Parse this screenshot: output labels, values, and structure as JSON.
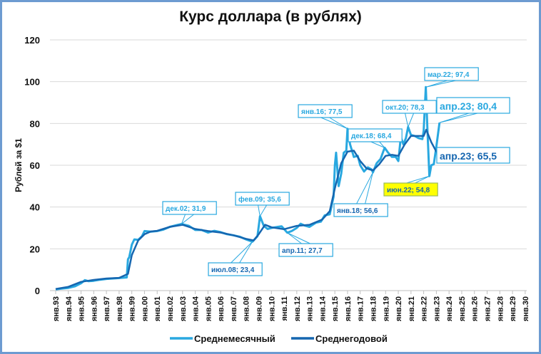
{
  "chart_data": {
    "type": "line",
    "title": "Курс доллара (в рублях)",
    "xlabel": "",
    "ylabel": "Рублей за $1",
    "ylim": [
      0,
      120
    ],
    "yticks": [
      0,
      20,
      40,
      60,
      80,
      100,
      120
    ],
    "grid": true,
    "legend_position": "bottom",
    "xtick_labels": [
      "янв.93",
      "янв.94",
      "янв.95",
      "янв.96",
      "янв.97",
      "янв.98",
      "янв.99",
      "янв.00",
      "янв.01",
      "янв.02",
      "янв.03",
      "янв.04",
      "янв.05",
      "янв.06",
      "янв.07",
      "янв.08",
      "янв.09",
      "янв.10",
      "янв.11",
      "янв.12",
      "янв.13",
      "янв.14",
      "янв.15",
      "янв.16",
      "янв.17",
      "янв.18",
      "янв.19",
      "янв.20",
      "янв.21",
      "янв.22",
      "янв.23",
      "янв.24",
      "янв.25",
      "янв.26",
      "янв.27",
      "янв.28",
      "янв.29",
      "янв.30"
    ],
    "series": [
      {
        "name": "Среднемесячный",
        "color": "#29a8e0",
        "points": [
          [
            1993.0,
            0.6
          ],
          [
            1993.5,
            1.0
          ],
          [
            1994.0,
            1.3
          ],
          [
            1994.5,
            2.0
          ],
          [
            1995.0,
            3.5
          ],
          [
            1995.3,
            5.0
          ],
          [
            1995.6,
            4.5
          ],
          [
            1996.0,
            4.7
          ],
          [
            1996.5,
            5.2
          ],
          [
            1997.0,
            5.6
          ],
          [
            1997.5,
            5.8
          ],
          [
            1998.0,
            6.0
          ],
          [
            1998.6,
            6.3
          ],
          [
            1998.7,
            15.0
          ],
          [
            1998.8,
            16.0
          ],
          [
            1999.0,
            22.0
          ],
          [
            1999.2,
            24.5
          ],
          [
            1999.5,
            24.3
          ],
          [
            1999.8,
            26.0
          ],
          [
            2000.0,
            28.5
          ],
          [
            2000.5,
            28.2
          ],
          [
            2001.0,
            28.5
          ],
          [
            2001.5,
            29.2
          ],
          [
            2002.0,
            30.5
          ],
          [
            2002.5,
            31.3
          ],
          [
            2002.92,
            31.9
          ],
          [
            2003.5,
            31.0
          ],
          [
            2004.0,
            29.0
          ],
          [
            2004.5,
            29.0
          ],
          [
            2005.0,
            27.8
          ],
          [
            2005.5,
            28.6
          ],
          [
            2006.0,
            28.0
          ],
          [
            2006.5,
            27.0
          ],
          [
            2007.0,
            26.5
          ],
          [
            2007.5,
            25.8
          ],
          [
            2008.0,
            24.5
          ],
          [
            2008.5,
            23.4
          ],
          [
            2008.9,
            26.0
          ],
          [
            2009.1,
            35.6
          ],
          [
            2009.4,
            31.0
          ],
          [
            2009.7,
            29.5
          ],
          [
            2010.0,
            30.0
          ],
          [
            2010.5,
            30.5
          ],
          [
            2010.8,
            30.8
          ],
          [
            2011.0,
            29.5
          ],
          [
            2011.25,
            27.7
          ],
          [
            2011.6,
            28.5
          ],
          [
            2012.0,
            30.0
          ],
          [
            2012.3,
            32.0
          ],
          [
            2012.6,
            31.2
          ],
          [
            2013.0,
            30.5
          ],
          [
            2013.5,
            32.5
          ],
          [
            2013.9,
            33.0
          ],
          [
            2014.2,
            36.0
          ],
          [
            2014.6,
            36.5
          ],
          [
            2014.9,
            45.0
          ],
          [
            2015.0,
            60.0
          ],
          [
            2015.1,
            66.0
          ],
          [
            2015.3,
            50.0
          ],
          [
            2015.5,
            56.0
          ],
          [
            2015.7,
            66.0
          ],
          [
            2015.9,
            67.0
          ],
          [
            2016.0,
            77.5
          ],
          [
            2016.2,
            70.0
          ],
          [
            2016.5,
            64.0
          ],
          [
            2016.8,
            64.5
          ],
          [
            2017.0,
            60.0
          ],
          [
            2017.3,
            57.0
          ],
          [
            2017.6,
            59.0
          ],
          [
            2017.9,
            58.0
          ],
          [
            2018.0,
            56.6
          ],
          [
            2018.3,
            61.0
          ],
          [
            2018.6,
            63.0
          ],
          [
            2018.92,
            68.4
          ],
          [
            2019.2,
            66.0
          ],
          [
            2019.5,
            64.0
          ],
          [
            2019.8,
            64.0
          ],
          [
            2020.0,
            62.0
          ],
          [
            2020.2,
            73.5
          ],
          [
            2020.4,
            70.0
          ],
          [
            2020.6,
            73.0
          ],
          [
            2020.77,
            78.3
          ],
          [
            2021.0,
            74.5
          ],
          [
            2021.3,
            74.0
          ],
          [
            2021.6,
            73.0
          ],
          [
            2021.9,
            72.5
          ],
          [
            2022.0,
            76.5
          ],
          [
            2022.17,
            97.4
          ],
          [
            2022.3,
            76.0
          ],
          [
            2022.45,
            54.8
          ],
          [
            2022.6,
            60.0
          ],
          [
            2022.8,
            60.5
          ],
          [
            2023.0,
            69.0
          ],
          [
            2023.25,
            80.4
          ]
        ]
      },
      {
        "name": "Среднегодовой",
        "color": "#1566b0",
        "points": [
          [
            1993.0,
            0.8
          ],
          [
            1994.0,
            1.8
          ],
          [
            1995.0,
            4.2
          ],
          [
            1996.0,
            5.1
          ],
          [
            1997.0,
            5.8
          ],
          [
            1998.0,
            6.1
          ],
          [
            1998.7,
            8.0
          ],
          [
            1999.0,
            17.0
          ],
          [
            1999.5,
            24.0
          ],
          [
            2000.0,
            27.0
          ],
          [
            2000.5,
            28.3
          ],
          [
            2001.0,
            28.6
          ],
          [
            2002.0,
            30.5
          ],
          [
            2003.0,
            31.5
          ],
          [
            2004.0,
            29.5
          ],
          [
            2005.0,
            28.5
          ],
          [
            2006.0,
            27.8
          ],
          [
            2007.0,
            26.5
          ],
          [
            2008.0,
            24.8
          ],
          [
            2008.6,
            24.0
          ],
          [
            2009.0,
            27.0
          ],
          [
            2009.5,
            31.5
          ],
          [
            2010.0,
            30.3
          ],
          [
            2011.0,
            29.4
          ],
          [
            2012.0,
            31.0
          ],
          [
            2013.0,
            31.5
          ],
          [
            2014.0,
            34.0
          ],
          [
            2014.6,
            38.0
          ],
          [
            2015.0,
            49.0
          ],
          [
            2015.5,
            61.0
          ],
          [
            2016.0,
            66.5
          ],
          [
            2016.5,
            67.0
          ],
          [
            2017.0,
            62.0
          ],
          [
            2017.5,
            58.5
          ],
          [
            2018.0,
            57.5
          ],
          [
            2018.5,
            60.5
          ],
          [
            2019.0,
            64.5
          ],
          [
            2019.5,
            65.0
          ],
          [
            2020.0,
            64.5
          ],
          [
            2020.5,
            70.0
          ],
          [
            2021.0,
            74.0
          ],
          [
            2021.5,
            74.0
          ],
          [
            2022.0,
            74.0
          ],
          [
            2022.2,
            77.0
          ],
          [
            2022.6,
            71.0
          ],
          [
            2023.0,
            66.5
          ],
          [
            2023.25,
            65.5
          ]
        ]
      }
    ],
    "annotations": [
      {
        "label": "дек.02; 31,9",
        "x": 2002.92,
        "y": 31.9,
        "series": "Среднемесячный"
      },
      {
        "label": "июл.08; 23,4",
        "x": 2008.5,
        "y": 23.4,
        "series": "Среднемесячный"
      },
      {
        "label": "фев.09; 35,6",
        "x": 2009.1,
        "y": 35.6,
        "series": "Среднемесячный"
      },
      {
        "label": "апр.11; 27,7",
        "x": 2011.25,
        "y": 27.7,
        "series": "Среднемесячный"
      },
      {
        "label": "янв.16; 77,5",
        "x": 2016.0,
        "y": 77.5,
        "series": "Среднемесячный"
      },
      {
        "label": "янв.18; 56,6",
        "x": 2018.0,
        "y": 56.6,
        "series": "Среднемесячный"
      },
      {
        "label": "дек.18; 68,4",
        "x": 2018.92,
        "y": 68.4,
        "series": "Среднемесячный"
      },
      {
        "label": "окт.20; 78,3",
        "x": 2020.77,
        "y": 78.3,
        "series": "Среднемесячный"
      },
      {
        "label": "мар.22; 97,4",
        "x": 2022.17,
        "y": 97.4,
        "series": "Среднемесячный"
      },
      {
        "label": "июн.22; 54,8",
        "x": 2022.45,
        "y": 54.8,
        "series": "Среднемесячный",
        "highlight": "#ffff00"
      },
      {
        "label": "апр.23; 80,4",
        "x": 2023.25,
        "y": 80.4,
        "series": "Среднемесячный"
      },
      {
        "label": "апр.23; 65,5",
        "x": 2023.25,
        "y": 65.5,
        "series": "Среднегодовой"
      }
    ]
  },
  "legend": [
    {
      "label": "Среднемесячный",
      "color": "#29a8e0"
    },
    {
      "label": "Среднегодовой",
      "color": "#1566b0"
    }
  ]
}
